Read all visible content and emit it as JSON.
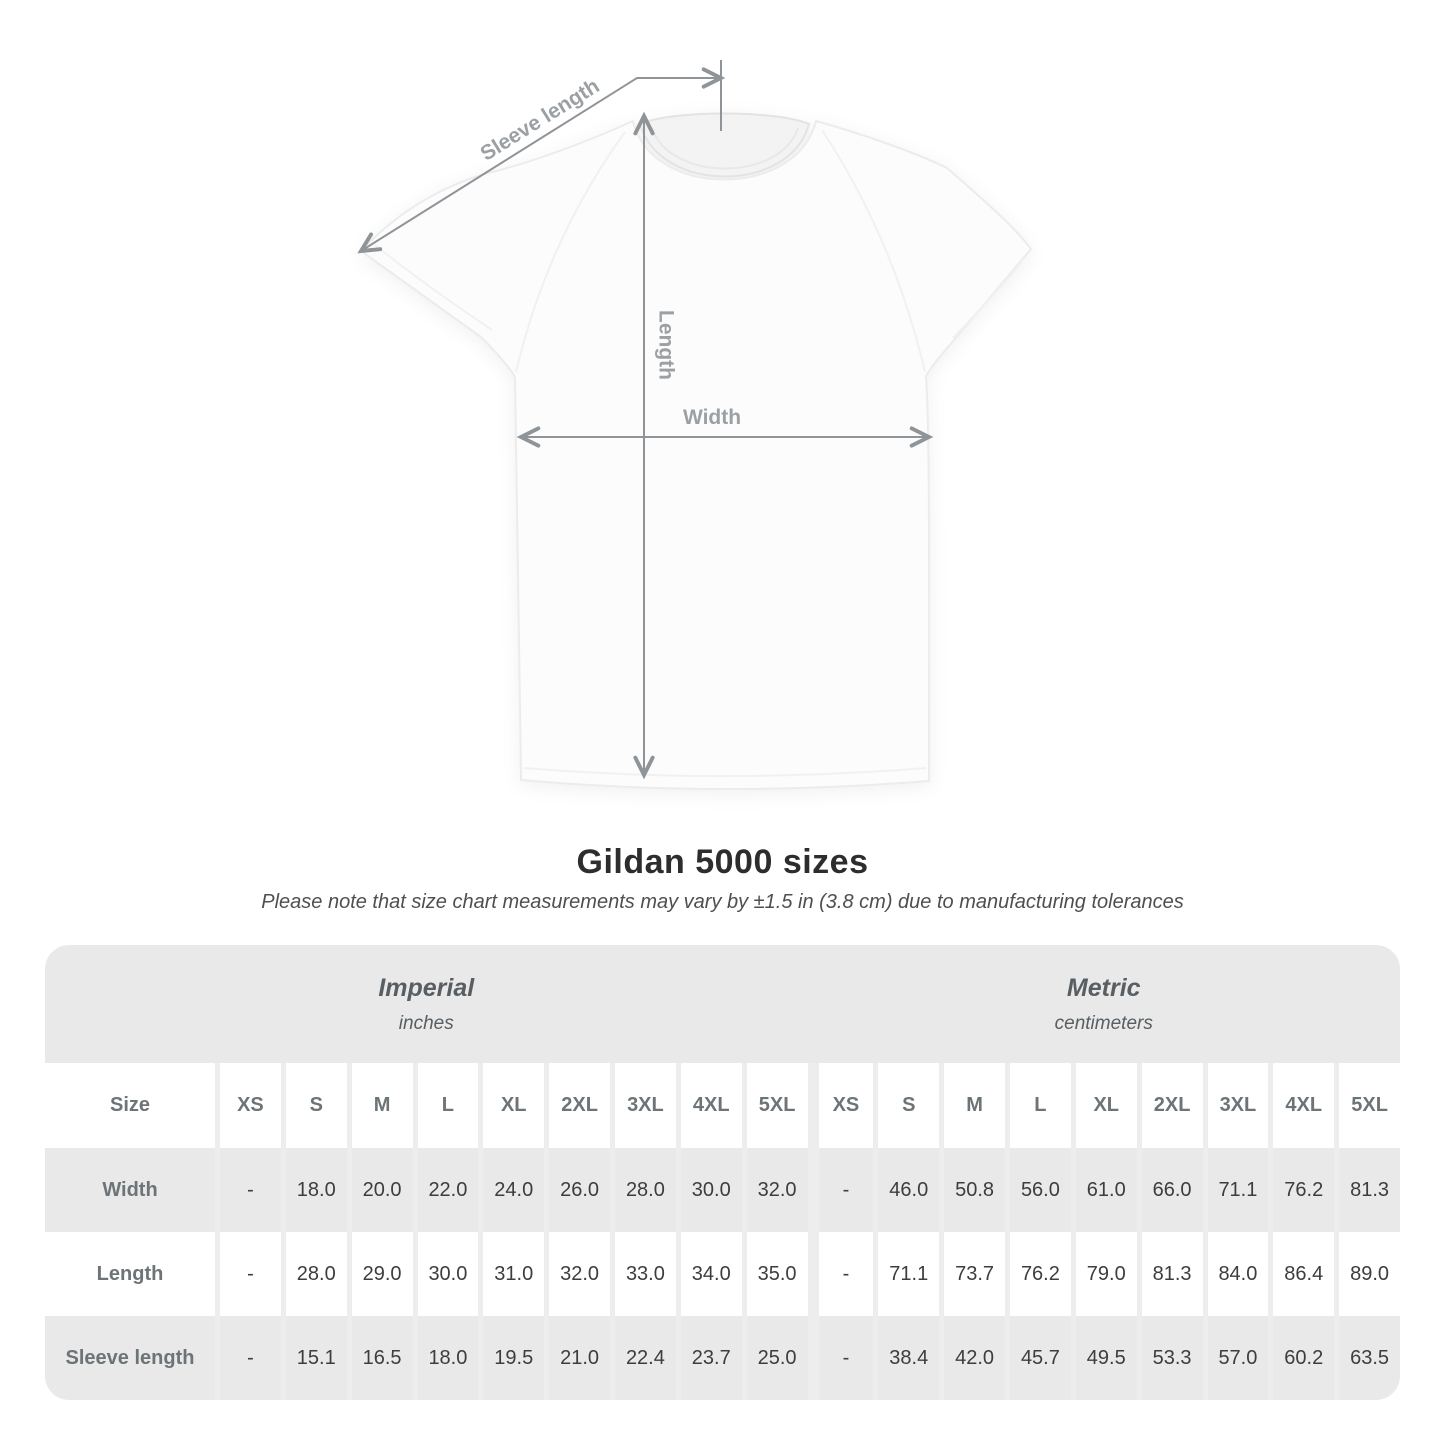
{
  "diagram": {
    "labels": {
      "sleeve_length": "Sleeve length",
      "length": "Length",
      "width": "Width"
    }
  },
  "title": "Gildan 5000 sizes",
  "subtitle": "Please note that size chart measurements may vary by ±1.5 in (3.8 cm) due to manufacturing tolerances",
  "table": {
    "groups": [
      {
        "label": "Imperial",
        "sublabel": "inches"
      },
      {
        "label": "Metric",
        "sublabel": "centimeters"
      }
    ],
    "size_header": "Size",
    "sizes": [
      "XS",
      "S",
      "M",
      "L",
      "XL",
      "2XL",
      "3XL",
      "4XL",
      "5XL"
    ],
    "rows": [
      {
        "label": "Width",
        "imperial": [
          "-",
          "18.0",
          "20.0",
          "22.0",
          "24.0",
          "26.0",
          "28.0",
          "30.0",
          "32.0"
        ],
        "metric": [
          "-",
          "46.0",
          "50.8",
          "56.0",
          "61.0",
          "66.0",
          "71.1",
          "76.2",
          "81.3"
        ]
      },
      {
        "label": "Length",
        "imperial": [
          "-",
          "28.0",
          "29.0",
          "30.0",
          "31.0",
          "32.0",
          "33.0",
          "34.0",
          "35.0"
        ],
        "metric": [
          "-",
          "71.1",
          "73.7",
          "76.2",
          "79.0",
          "81.3",
          "84.0",
          "86.4",
          "89.0"
        ]
      },
      {
        "label": "Sleeve length",
        "imperial": [
          "-",
          "15.1",
          "16.5",
          "18.0",
          "19.5",
          "21.0",
          "22.4",
          "23.7",
          "25.0"
        ],
        "metric": [
          "-",
          "38.4",
          "42.0",
          "45.7",
          "49.5",
          "53.3",
          "57.0",
          "60.2",
          "63.5"
        ]
      }
    ]
  },
  "chart_data": {
    "type": "table",
    "title": "Gildan 5000 sizes",
    "columns": [
      "XS",
      "S",
      "M",
      "L",
      "XL",
      "2XL",
      "3XL",
      "4XL",
      "5XL"
    ],
    "units": {
      "imperial": "inches",
      "metric": "centimeters"
    },
    "rows": [
      {
        "measure": "Width",
        "imperial": [
          null,
          18.0,
          20.0,
          22.0,
          24.0,
          26.0,
          28.0,
          30.0,
          32.0
        ],
        "metric": [
          null,
          46.0,
          50.8,
          56.0,
          61.0,
          66.0,
          71.1,
          76.2,
          81.3
        ]
      },
      {
        "measure": "Length",
        "imperial": [
          null,
          28.0,
          29.0,
          30.0,
          31.0,
          32.0,
          33.0,
          34.0,
          35.0
        ],
        "metric": [
          null,
          71.1,
          73.7,
          76.2,
          79.0,
          81.3,
          84.0,
          86.4,
          89.0
        ]
      },
      {
        "measure": "Sleeve length",
        "imperial": [
          null,
          15.1,
          16.5,
          18.0,
          19.5,
          21.0,
          22.4,
          23.7,
          25.0
        ],
        "metric": [
          null,
          38.4,
          42.0,
          45.7,
          49.5,
          53.3,
          57.0,
          60.2,
          63.5
        ]
      }
    ]
  },
  "colors": {
    "row_gray": "#e9e9e9",
    "divider": "#ededed",
    "value_text": "#3d3d3d",
    "header_text": "#6d7478",
    "group_text": "#585e62",
    "title_text": "#2d2d2d",
    "subtitle_text": "#4f4f4f",
    "diagram_line": "#8f9498",
    "diagram_label": "#9ba0a4",
    "shirt_fill": "#fcfcfc",
    "shirt_outline": "#ececec"
  }
}
